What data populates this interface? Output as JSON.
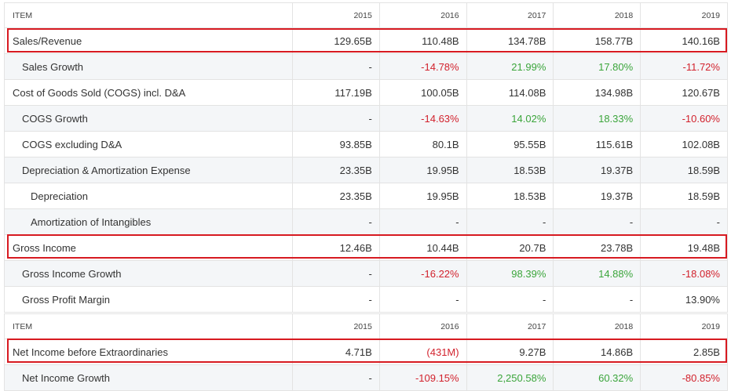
{
  "table1": {
    "header": [
      "ITEM",
      "2015",
      "2016",
      "2017",
      "2018",
      "2019"
    ],
    "rows": [
      {
        "label": "Sales/Revenue",
        "values": [
          "129.65B",
          "110.48B",
          "134.78B",
          "158.77B",
          "140.16B"
        ]
      },
      {
        "label": "Sales Growth",
        "values": [
          "-",
          "-14.78%",
          "21.99%",
          "17.80%",
          "-11.72%"
        ]
      },
      {
        "label": "Cost of Goods Sold (COGS) incl. D&A",
        "values": [
          "117.19B",
          "100.05B",
          "114.08B",
          "134.98B",
          "120.67B"
        ]
      },
      {
        "label": "COGS Growth",
        "values": [
          "-",
          "-14.63%",
          "14.02%",
          "18.33%",
          "-10.60%"
        ]
      },
      {
        "label": "COGS excluding D&A",
        "values": [
          "93.85B",
          "80.1B",
          "95.55B",
          "115.61B",
          "102.08B"
        ]
      },
      {
        "label": "Depreciation & Amortization Expense",
        "values": [
          "23.35B",
          "19.95B",
          "18.53B",
          "19.37B",
          "18.59B"
        ]
      },
      {
        "label": "Depreciation",
        "values": [
          "23.35B",
          "19.95B",
          "18.53B",
          "19.37B",
          "18.59B"
        ]
      },
      {
        "label": "Amortization of Intangibles",
        "values": [
          "-",
          "-",
          "-",
          "-",
          "-"
        ]
      },
      {
        "label": "Gross Income",
        "values": [
          "12.46B",
          "10.44B",
          "20.7B",
          "23.78B",
          "19.48B"
        ]
      },
      {
        "label": "Gross Income Growth",
        "values": [
          "-",
          "-16.22%",
          "98.39%",
          "14.88%",
          "-18.08%"
        ]
      },
      {
        "label": "Gross Profit Margin",
        "values": [
          "-",
          "-",
          "-",
          "-",
          "13.90%"
        ]
      }
    ]
  },
  "table2": {
    "header": [
      "ITEM",
      "2015",
      "2016",
      "2017",
      "2018",
      "2019"
    ],
    "rows": [
      {
        "label": "Net Income before Extraordinaries",
        "values": [
          "4.71B",
          "(431M)",
          "9.27B",
          "14.86B",
          "2.85B"
        ]
      },
      {
        "label": "Net Income Growth",
        "values": [
          "-",
          "-109.15%",
          "2,250.58%",
          "60.32%",
          "-80.85%"
        ]
      }
    ]
  },
  "colors": {
    "negative": "#d2222d",
    "positive": "#3ba53b",
    "highlight_box": "#d71a21"
  }
}
